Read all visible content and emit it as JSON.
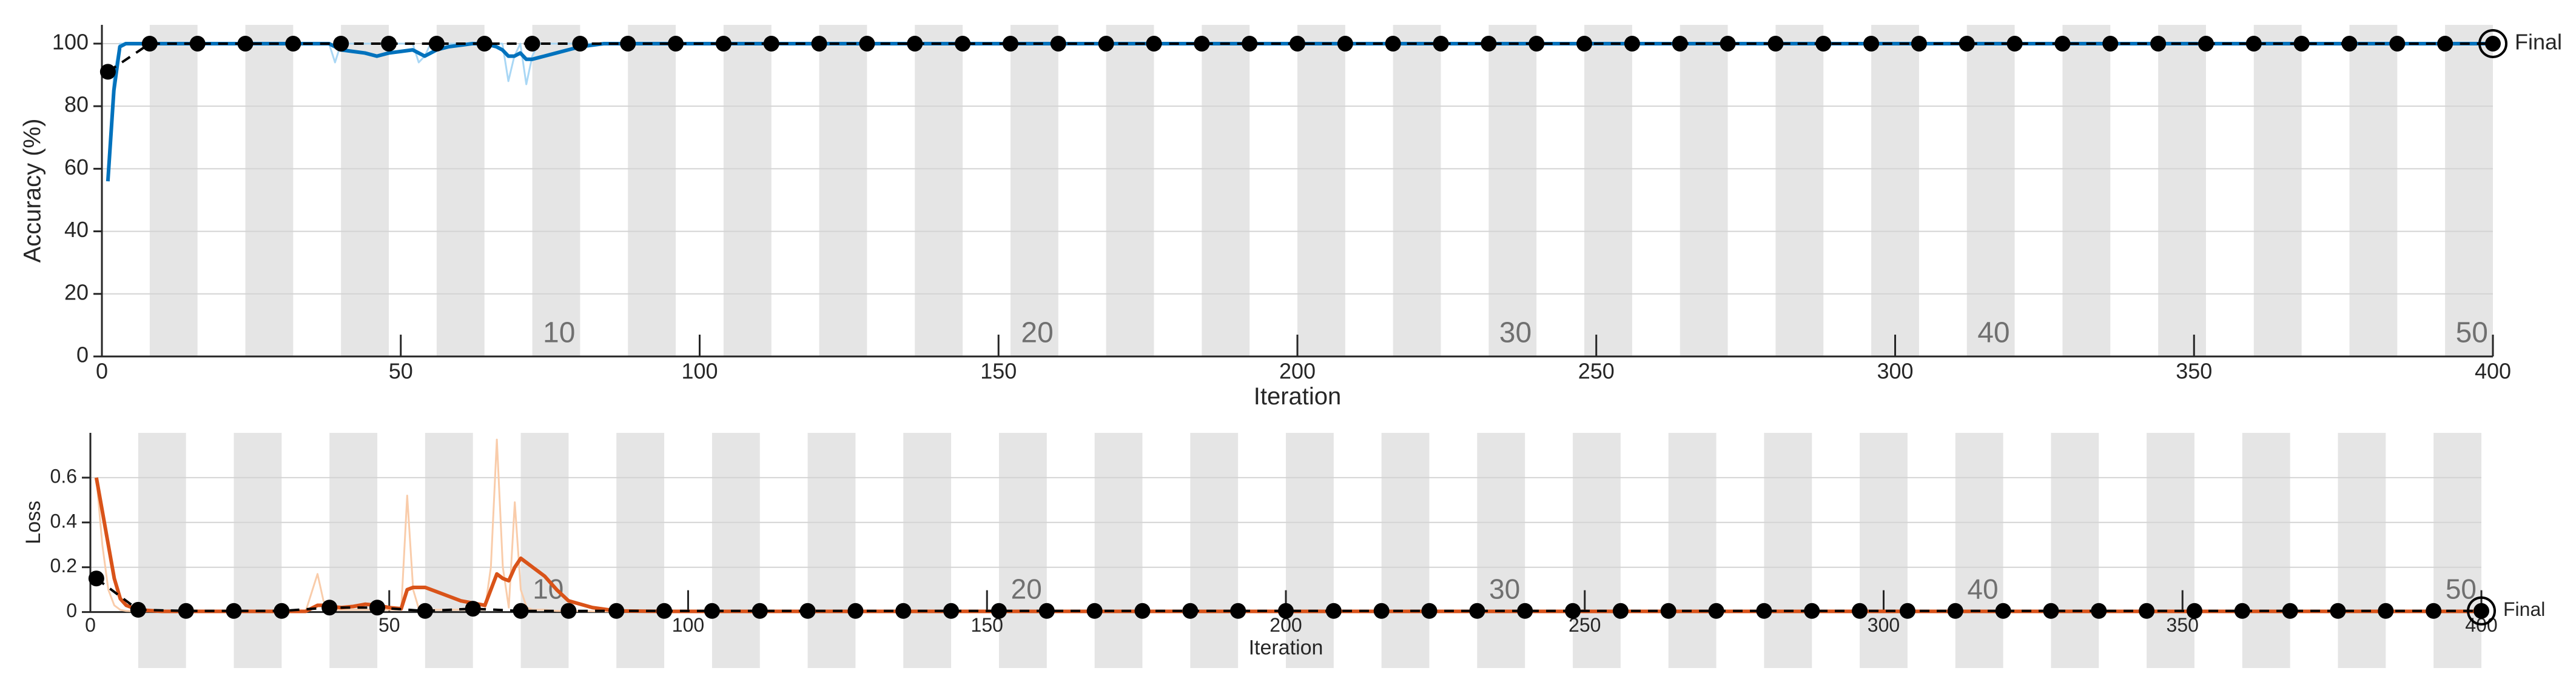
{
  "chart_data": [
    {
      "type": "line",
      "ylabel": "Accuracy (%)",
      "xlabel": "Iteration",
      "xlim": [
        0,
        400
      ],
      "ylim": [
        0,
        106
      ],
      "xticks": [
        0,
        50,
        100,
        150,
        200,
        250,
        300,
        350,
        400
      ],
      "yticks": [
        0,
        20,
        40,
        60,
        80,
        100
      ],
      "grid": true,
      "iterations_per_epoch": 8,
      "band_color": "#e5e5e5",
      "epoch_labels": [
        10,
        20,
        30,
        40,
        50
      ],
      "final_label": "Final",
      "series": [
        {
          "color": "#a9d7f5",
          "line_width": 3,
          "x": [
            1,
            2,
            3,
            4,
            5,
            6,
            8,
            12,
            16,
            20,
            24,
            28,
            32,
            36,
            38,
            39,
            40,
            42,
            44,
            46,
            48,
            50,
            52,
            53,
            54,
            55,
            56,
            58,
            60,
            62,
            64,
            66,
            67,
            68,
            69,
            70,
            71,
            72,
            73,
            74,
            76,
            78,
            80,
            84,
            88,
            96,
            104,
            112,
            120,
            128,
            136,
            144,
            152,
            160,
            168,
            176,
            184,
            192,
            200,
            208,
            216,
            224,
            232,
            240,
            248,
            256,
            264,
            272,
            280,
            288,
            296,
            304,
            312,
            320,
            328,
            336,
            344,
            352,
            360,
            368,
            376,
            384,
            392,
            400
          ],
          "values": [
            56,
            90,
            100,
            100,
            100,
            100,
            100,
            100,
            100,
            100,
            100,
            100,
            100,
            100,
            100,
            94,
            100,
            100,
            100,
            100,
            100,
            100,
            100,
            94,
            96,
            100,
            100,
            100,
            100,
            100,
            100,
            100,
            100,
            88,
            96,
            100,
            87,
            96,
            100,
            100,
            100,
            100,
            100,
            100,
            100,
            100,
            100,
            100,
            100,
            100,
            100,
            100,
            100,
            100,
            100,
            100,
            100,
            100,
            100,
            100,
            100,
            100,
            100,
            100,
            100,
            100,
            100,
            100,
            100,
            100,
            100,
            100,
            100,
            100,
            100,
            100,
            100,
            100,
            100,
            100,
            100,
            100,
            100,
            100
          ]
        },
        {
          "color": "#0072bd",
          "line_width": 6,
          "x": [
            1,
            2,
            3,
            4,
            5,
            6,
            8,
            12,
            16,
            20,
            24,
            28,
            32,
            36,
            38,
            39,
            40,
            42,
            44,
            46,
            48,
            50,
            52,
            53,
            54,
            55,
            56,
            58,
            60,
            62,
            64,
            66,
            67,
            68,
            69,
            70,
            71,
            72,
            73,
            74,
            76,
            78,
            80,
            84,
            88,
            96,
            104,
            112,
            120,
            128,
            136,
            144,
            152,
            160,
            168,
            176,
            184,
            192,
            200,
            208,
            216,
            224,
            232,
            240,
            248,
            256,
            264,
            272,
            280,
            288,
            296,
            304,
            312,
            320,
            328,
            336,
            344,
            352,
            360,
            368,
            376,
            384,
            392,
            400
          ],
          "values": [
            56,
            85,
            99,
            100,
            100,
            100,
            100,
            100,
            100,
            100,
            100,
            100,
            100,
            100,
            100,
            99,
            98,
            97.5,
            97,
            96,
            97,
            97.5,
            98,
            97,
            96,
            97,
            98,
            99,
            99.5,
            100,
            100,
            99,
            98,
            96,
            96,
            97,
            95,
            95,
            95.5,
            96,
            97,
            98,
            99,
            100,
            100,
            100,
            100,
            100,
            100,
            100,
            100,
            100,
            100,
            100,
            100,
            100,
            100,
            100,
            100,
            100,
            100,
            100,
            100,
            100,
            100,
            100,
            100,
            100,
            100,
            100,
            100,
            100,
            100,
            100,
            100,
            100,
            100,
            100,
            100,
            100,
            100,
            100,
            100,
            100
          ]
        },
        {
          "color": "#000000",
          "line_width": 4,
          "dashed": true,
          "marker": "circle",
          "x": [
            1,
            8,
            16,
            24,
            32,
            40,
            48,
            56,
            64,
            72,
            80,
            88,
            96,
            104,
            112,
            120,
            128,
            136,
            144,
            152,
            160,
            168,
            176,
            184,
            192,
            200,
            208,
            216,
            224,
            232,
            240,
            248,
            256,
            264,
            272,
            280,
            288,
            296,
            304,
            312,
            320,
            328,
            336,
            344,
            352,
            360,
            368,
            376,
            384,
            392,
            400
          ],
          "values": [
            91,
            100,
            100,
            100,
            100,
            100,
            100,
            100,
            100,
            100,
            100,
            100,
            100,
            100,
            100,
            100,
            100,
            100,
            100,
            100,
            100,
            100,
            100,
            100,
            100,
            100,
            100,
            100,
            100,
            100,
            100,
            100,
            100,
            100,
            100,
            100,
            100,
            100,
            100,
            100,
            100,
            100,
            100,
            100,
            100,
            100,
            100,
            100,
            100,
            100,
            100
          ]
        }
      ]
    },
    {
      "type": "line",
      "ylabel": "Loss",
      "xlabel": "Iteration",
      "xlim": [
        0,
        400
      ],
      "ylim": [
        -0.25,
        0.8
      ],
      "xticks": [
        0,
        50,
        100,
        150,
        200,
        250,
        300,
        350,
        400
      ],
      "yticks": [
        0,
        0.2,
        0.4,
        0.6
      ],
      "grid": true,
      "iterations_per_epoch": 8,
      "band_color": "#e5e5e5",
      "epoch_labels": [
        10,
        20,
        30,
        40,
        50
      ],
      "final_label": "Final",
      "series": [
        {
          "color": "#f9ccaa",
          "line_width": 3,
          "x": [
            1,
            2,
            3,
            4,
            5,
            6,
            8,
            12,
            16,
            20,
            24,
            28,
            32,
            36,
            38,
            39,
            40,
            42,
            44,
            46,
            48,
            50,
            52,
            53,
            54,
            55,
            56,
            58,
            60,
            62,
            64,
            66,
            67,
            68,
            69,
            70,
            71,
            72,
            73,
            74,
            76,
            78,
            80,
            84,
            88,
            96,
            104,
            112,
            120,
            128,
            136,
            144,
            152,
            160,
            168,
            176,
            184,
            192,
            200,
            208,
            216,
            224,
            232,
            240,
            248,
            256,
            264,
            272,
            280,
            288,
            296,
            304,
            312,
            320,
            328,
            336,
            344,
            352,
            360,
            368,
            376,
            384,
            392,
            400
          ],
          "values": [
            0.6,
            0.3,
            0.1,
            0.03,
            0.01,
            0.005,
            0.003,
            0.002,
            0.002,
            0.002,
            0.002,
            0.002,
            0.002,
            0.002,
            0.17,
            0.05,
            0.01,
            0.01,
            0.01,
            0.01,
            0.01,
            0.01,
            0.01,
            0.52,
            0.1,
            0.01,
            0.01,
            0.01,
            0.01,
            0.01,
            0.01,
            0.01,
            0.2,
            0.77,
            0.2,
            0.02,
            0.49,
            0.1,
            0.02,
            0.01,
            0.01,
            0.005,
            0.005,
            0.003,
            0.002,
            0.002,
            0.002,
            0.002,
            0.002,
            0.002,
            0.002,
            0.002,
            0.002,
            0.002,
            0.002,
            0.002,
            0.002,
            0.002,
            0.002,
            0.002,
            0.002,
            0.002,
            0.002,
            0.002,
            0.002,
            0.002,
            0.002,
            0.002,
            0.002,
            0.002,
            0.002,
            0.002,
            0.002,
            0.002,
            0.002,
            0.002,
            0.002,
            0.002,
            0.002,
            0.002,
            0.002,
            0.002,
            0.002,
            0.002
          ]
        },
        {
          "color": "#d95319",
          "line_width": 6,
          "x": [
            1,
            2,
            3,
            4,
            5,
            6,
            8,
            12,
            16,
            20,
            24,
            28,
            32,
            36,
            38,
            39,
            40,
            42,
            44,
            46,
            48,
            50,
            52,
            53,
            54,
            55,
            56,
            58,
            60,
            62,
            64,
            66,
            67,
            68,
            69,
            70,
            71,
            72,
            73,
            74,
            76,
            78,
            80,
            84,
            88,
            96,
            104,
            112,
            120,
            128,
            136,
            144,
            152,
            160,
            168,
            176,
            184,
            192,
            200,
            208,
            216,
            224,
            232,
            240,
            248,
            256,
            264,
            272,
            280,
            288,
            296,
            304,
            312,
            320,
            328,
            336,
            344,
            352,
            360,
            368,
            376,
            384,
            392,
            400
          ],
          "values": [
            0.6,
            0.45,
            0.3,
            0.15,
            0.06,
            0.03,
            0.01,
            0.003,
            0.003,
            0.003,
            0.003,
            0.003,
            0.003,
            0.003,
            0.03,
            0.03,
            0.025,
            0.02,
            0.025,
            0.035,
            0.03,
            0.02,
            0.015,
            0.1,
            0.11,
            0.11,
            0.11,
            0.09,
            0.07,
            0.05,
            0.04,
            0.03,
            0.1,
            0.17,
            0.15,
            0.14,
            0.2,
            0.24,
            0.22,
            0.2,
            0.16,
            0.1,
            0.05,
            0.02,
            0.005,
            0.003,
            0.003,
            0.003,
            0.003,
            0.003,
            0.003,
            0.003,
            0.003,
            0.003,
            0.003,
            0.003,
            0.003,
            0.003,
            0.003,
            0.003,
            0.003,
            0.003,
            0.003,
            0.003,
            0.003,
            0.003,
            0.003,
            0.003,
            0.003,
            0.003,
            0.003,
            0.003,
            0.003,
            0.003,
            0.003,
            0.003,
            0.003,
            0.003,
            0.003,
            0.003,
            0.003,
            0.003,
            0.003,
            0.003
          ]
        },
        {
          "color": "#000000",
          "line_width": 4,
          "dashed": true,
          "marker": "circle",
          "x": [
            1,
            8,
            16,
            24,
            32,
            40,
            48,
            56,
            64,
            72,
            80,
            88,
            96,
            104,
            112,
            120,
            128,
            136,
            144,
            152,
            160,
            168,
            176,
            184,
            192,
            200,
            208,
            216,
            224,
            232,
            240,
            248,
            256,
            264,
            272,
            280,
            288,
            296,
            304,
            312,
            320,
            328,
            336,
            344,
            352,
            360,
            368,
            376,
            384,
            392,
            400
          ],
          "values": [
            0.15,
            0.01,
            0.005,
            0.005,
            0.005,
            0.02,
            0.02,
            0.005,
            0.015,
            0.005,
            0.005,
            0.005,
            0.005,
            0.005,
            0.005,
            0.005,
            0.005,
            0.005,
            0.005,
            0.005,
            0.005,
            0.005,
            0.005,
            0.005,
            0.005,
            0.005,
            0.005,
            0.005,
            0.005,
            0.005,
            0.005,
            0.005,
            0.005,
            0.005,
            0.005,
            0.005,
            0.005,
            0.005,
            0.005,
            0.005,
            0.005,
            0.005,
            0.005,
            0.005,
            0.005,
            0.005,
            0.005,
            0.005,
            0.005,
            0.005,
            0.005
          ]
        }
      ]
    }
  ]
}
